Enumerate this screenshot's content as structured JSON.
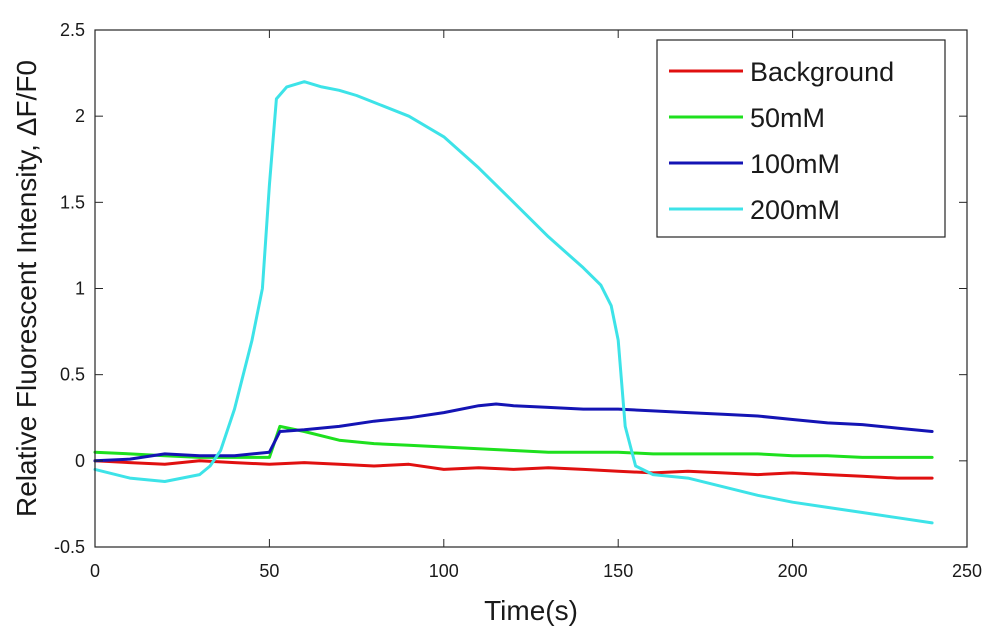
{
  "chart_data": {
    "type": "line",
    "xlabel": "Time(s)",
    "ylabel": "Relative Fluorescent Intensity, ΔF/F0",
    "xlim": [
      0,
      250
    ],
    "ylim": [
      -0.5,
      2.5
    ],
    "xticks": [
      0,
      50,
      100,
      150,
      200,
      250
    ],
    "yticks": [
      -0.5,
      0,
      0.5,
      1,
      1.5,
      2,
      2.5
    ],
    "xtick_labels": [
      "0",
      "50",
      "100",
      "150",
      "200",
      "250"
    ],
    "ytick_labels": [
      "-0.5",
      "0",
      "0.5",
      "1",
      "1.5",
      "2",
      "2.5"
    ],
    "grid": false,
    "legend_position": "top-right",
    "series": [
      {
        "name": "Background",
        "color": "#e01010",
        "x": [
          0,
          10,
          20,
          30,
          40,
          50,
          60,
          70,
          80,
          90,
          100,
          110,
          120,
          130,
          140,
          150,
          160,
          170,
          180,
          190,
          200,
          210,
          220,
          230,
          240
        ],
        "y": [
          0.0,
          -0.01,
          -0.02,
          0.0,
          -0.01,
          -0.02,
          -0.01,
          -0.02,
          -0.03,
          -0.02,
          -0.05,
          -0.04,
          -0.05,
          -0.04,
          -0.05,
          -0.06,
          -0.07,
          -0.06,
          -0.07,
          -0.08,
          -0.07,
          -0.08,
          -0.09,
          -0.1,
          -0.1
        ]
      },
      {
        "name": "50mM",
        "color": "#1ee01e",
        "x": [
          0,
          10,
          20,
          30,
          40,
          50,
          53,
          60,
          70,
          80,
          90,
          100,
          110,
          120,
          130,
          140,
          150,
          160,
          170,
          180,
          190,
          200,
          210,
          220,
          230,
          240
        ],
        "y": [
          0.05,
          0.04,
          0.03,
          0.02,
          0.02,
          0.02,
          0.2,
          0.17,
          0.12,
          0.1,
          0.09,
          0.08,
          0.07,
          0.06,
          0.05,
          0.05,
          0.05,
          0.04,
          0.04,
          0.04,
          0.04,
          0.03,
          0.03,
          0.02,
          0.02,
          0.02
        ]
      },
      {
        "name": "100mM",
        "color": "#1414b4",
        "x": [
          0,
          10,
          20,
          30,
          40,
          50,
          53,
          60,
          70,
          80,
          90,
          100,
          110,
          115,
          120,
          130,
          140,
          150,
          160,
          170,
          180,
          190,
          200,
          210,
          220,
          230,
          240
        ],
        "y": [
          0.0,
          0.01,
          0.04,
          0.03,
          0.03,
          0.05,
          0.17,
          0.18,
          0.2,
          0.23,
          0.25,
          0.28,
          0.32,
          0.33,
          0.32,
          0.31,
          0.3,
          0.3,
          0.29,
          0.28,
          0.27,
          0.26,
          0.24,
          0.22,
          0.21,
          0.19,
          0.17
        ]
      },
      {
        "name": "200mM",
        "color": "#3de3e8",
        "x": [
          0,
          10,
          20,
          30,
          33,
          36,
          40,
          45,
          48,
          50,
          52,
          55,
          60,
          65,
          70,
          75,
          80,
          90,
          100,
          110,
          120,
          130,
          140,
          145,
          148,
          150,
          152,
          155,
          160,
          170,
          180,
          190,
          200,
          210,
          220,
          230,
          240
        ],
        "y": [
          -0.05,
          -0.1,
          -0.12,
          -0.08,
          -0.03,
          0.06,
          0.3,
          0.7,
          1.0,
          1.6,
          2.1,
          2.17,
          2.2,
          2.17,
          2.15,
          2.12,
          2.08,
          2.0,
          1.88,
          1.7,
          1.5,
          1.3,
          1.12,
          1.02,
          0.9,
          0.7,
          0.2,
          -0.03,
          -0.08,
          -0.1,
          -0.15,
          -0.2,
          -0.24,
          -0.27,
          -0.3,
          -0.33,
          -0.36
        ]
      }
    ]
  }
}
